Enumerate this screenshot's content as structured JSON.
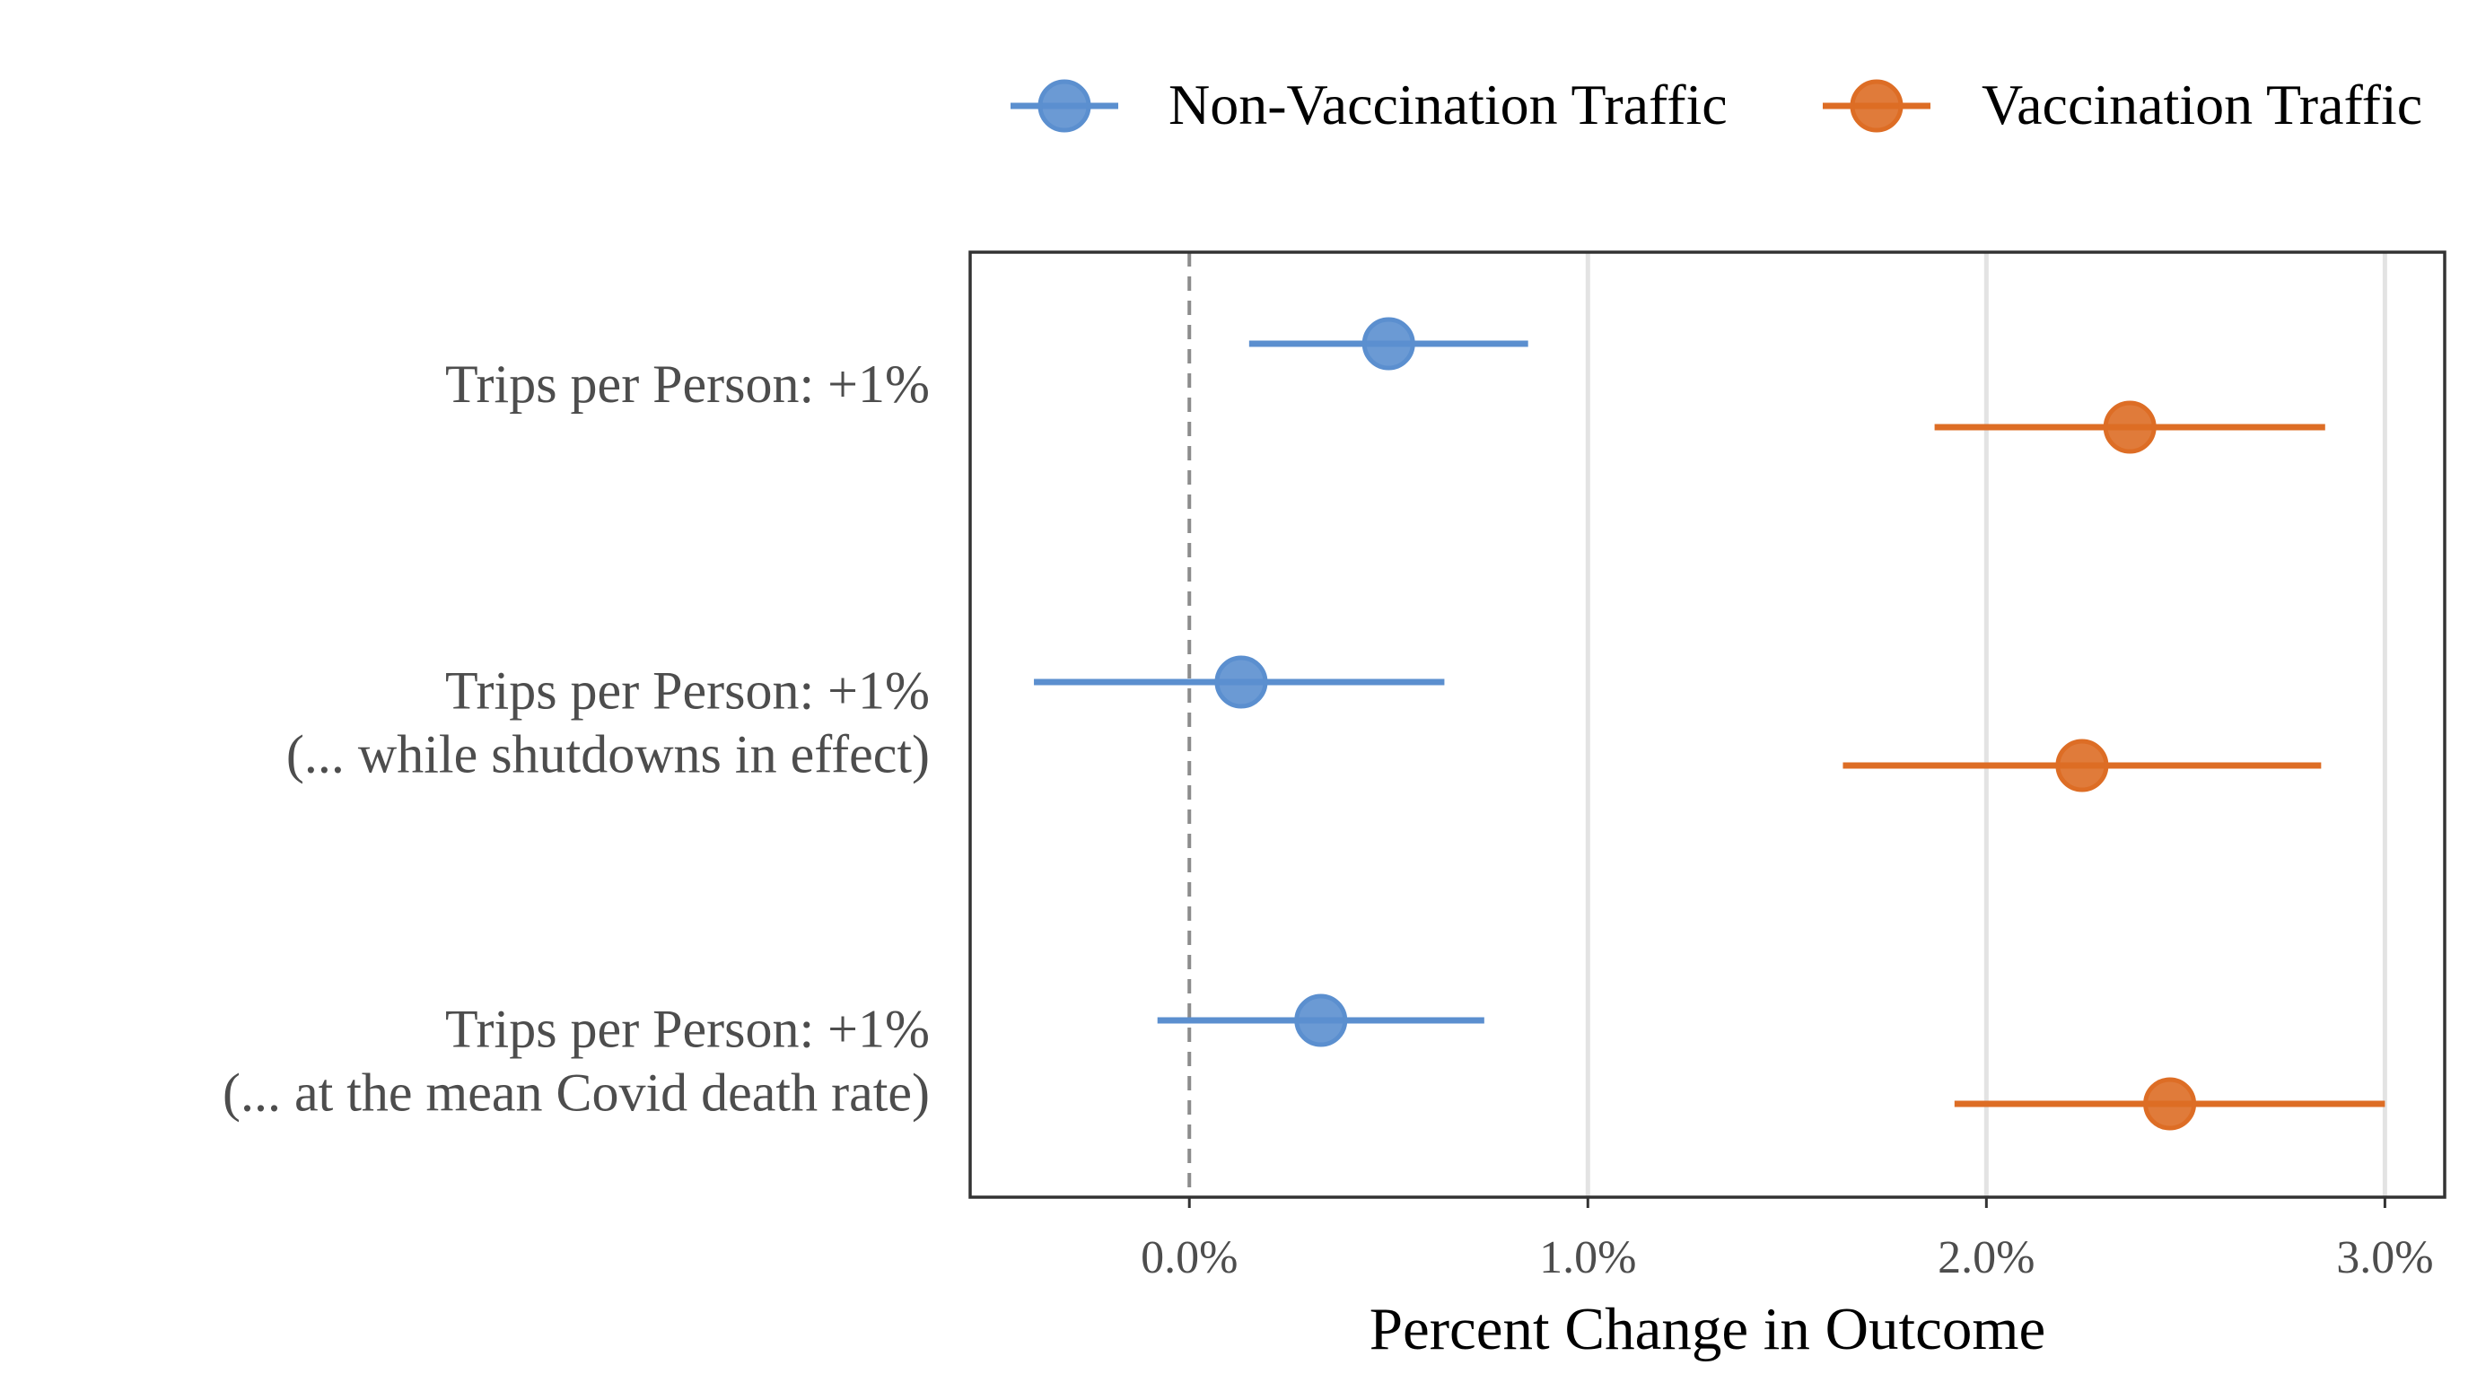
{
  "chart_data": {
    "type": "scatter",
    "subtype": "coefficient-plot-with-error-bars",
    "title": "",
    "xlabel": "Percent Change in Outcome",
    "ylabel": "",
    "xlim": [
      -0.55,
      3.15
    ],
    "x_ticks": [
      0.0,
      1.0,
      2.0,
      3.0
    ],
    "x_tick_labels": [
      "0.0%",
      "1.0%",
      "2.0%",
      "3.0%"
    ],
    "reference_line": {
      "x": 0.0,
      "style": "dashed"
    },
    "grid": "vertical major lines",
    "legend_position": "top-right",
    "categories": [
      "Trips per Person: +1%",
      "Trips per Person: +1%\n(... while shutdowns in effect)",
      "Trips per Person: +1%\n(... at the mean Covid death rate)"
    ],
    "series": [
      {
        "name": "Non-Vaccination Traffic",
        "color": "#5b8fcf",
        "estimates": [
          0.5,
          0.13,
          0.33
        ],
        "lower": [
          0.15,
          -0.39,
          -0.08
        ],
        "upper": [
          0.85,
          0.64,
          0.74
        ]
      },
      {
        "name": "Vaccination Traffic",
        "color": "#dd6d25",
        "estimates": [
          2.36,
          2.24,
          2.46
        ],
        "lower": [
          1.87,
          1.64,
          1.92
        ],
        "upper": [
          2.85,
          2.84,
          3.0
        ]
      }
    ]
  }
}
